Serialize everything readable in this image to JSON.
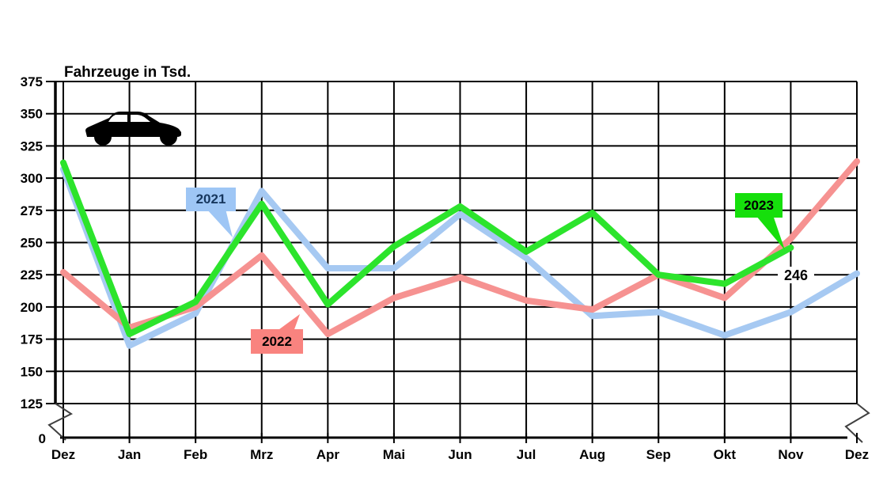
{
  "page": {
    "background": "#FFFFFF"
  },
  "chart_data": {
    "type": "line",
    "title": "Fahrzeuge in Tsd.",
    "x_categories": [
      "Dez",
      "Jan",
      "Feb",
      "Mrz",
      "Apr",
      "Mai",
      "Jun",
      "Jul",
      "Aug",
      "Sep",
      "Okt",
      "Nov",
      "Dez"
    ],
    "y_ticks": [
      375,
      350,
      325,
      300,
      275,
      250,
      225,
      200,
      175,
      150,
      125
    ],
    "ylim": [
      125,
      375
    ],
    "y_axis_break": true,
    "y_zero_label": "0",
    "grid": true,
    "gridline_color": "#000000",
    "legend_position": "inline-callouts",
    "series": [
      {
        "name": "2021",
        "color": "#A6C9F2",
        "values": [
          307,
          170,
          195,
          290,
          230,
          230,
          272,
          238,
          193,
          196,
          178,
          196,
          226
        ]
      },
      {
        "name": "2022",
        "color": "#F69291",
        "values": [
          227,
          184,
          200,
          240,
          179,
          207,
          223,
          205,
          198,
          225,
          207,
          253,
          313
        ]
      },
      {
        "name": "2023",
        "color": "#2CE42C",
        "values": [
          312,
          179,
          204,
          280,
          202,
          247,
          278,
          243,
          273,
          225,
          218,
          246
        ]
      }
    ],
    "annotations": [
      {
        "text": "246",
        "series": "2023",
        "x": "Nov"
      }
    ]
  },
  "callouts": [
    {
      "label": "2021",
      "fill": "#9EC6F5",
      "text_color": "#17375E"
    },
    {
      "label": "2022",
      "fill": "#F9837F",
      "text_color": "#000000"
    },
    {
      "label": "2023",
      "fill": "#16DF0C",
      "text_color": "#000000"
    }
  ],
  "icons": [
    {
      "name": "car-icon",
      "color": "#000000"
    }
  ]
}
